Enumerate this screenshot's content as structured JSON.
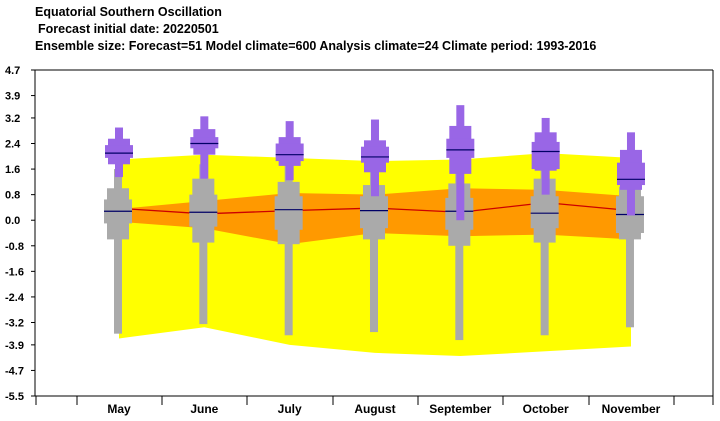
{
  "header": {
    "title": "Equatorial Southern Oscillation",
    "forecast_date": "Forecast initial date: 20220501",
    "ensemble_info": "Ensemble size: Forecast=51 Model climate=600 Analysis climate=24   Climate period: 1993-2016"
  },
  "colors": {
    "outer_band": "#ffff00",
    "inner_band": "#ff9900",
    "climate_box": "#aaaaaa",
    "forecast_box": "#9966e6",
    "median_line": "#cc0000",
    "box_median": "#000066"
  },
  "chart_data": {
    "type": "box",
    "title": "Equatorial Southern Oscillation",
    "categories": [
      "May",
      "June",
      "July",
      "August",
      "September",
      "October",
      "November"
    ],
    "y_ticks": [
      4.7,
      3.9,
      3.2,
      2.4,
      1.6,
      0.8,
      0.0,
      -0.8,
      -1.6,
      -2.4,
      -3.2,
      -3.9,
      -4.7,
      -5.5
    ],
    "ylim": [
      -5.5,
      4.7
    ],
    "grid": false,
    "analysis_climate_bands": {
      "outer_upper": [
        1.9,
        2.05,
        1.95,
        1.85,
        1.9,
        2.1,
        1.95
      ],
      "outer_lower": [
        -3.7,
        -3.35,
        -3.9,
        -4.15,
        -4.25,
        -4.1,
        -3.95
      ],
      "inner_upper": [
        0.35,
        0.6,
        0.85,
        0.8,
        1.0,
        0.95,
        0.75
      ],
      "inner_lower": [
        -0.05,
        -0.25,
        -0.75,
        -0.4,
        -0.5,
        -0.45,
        -0.6
      ],
      "median": [
        0.37,
        0.2,
        0.3,
        0.38,
        0.25,
        0.55,
        0.3
      ]
    },
    "model_climate": [
      {
        "min": -3.55,
        "p10": -0.6,
        "p25": -0.1,
        "median": 0.28,
        "p75": 0.65,
        "p90": 1.0,
        "max": 1.6
      },
      {
        "min": -3.25,
        "p10": -0.7,
        "p25": -0.2,
        "median": 0.25,
        "p75": 0.8,
        "p90": 1.3,
        "max": 1.75
      },
      {
        "min": -3.6,
        "p10": -0.75,
        "p25": -0.3,
        "median": 0.33,
        "p75": 0.75,
        "p90": 1.2,
        "max": 1.85
      },
      {
        "min": -3.5,
        "p10": -0.6,
        "p25": -0.25,
        "median": 0.3,
        "p75": 0.75,
        "p90": 1.1,
        "max": 1.55
      },
      {
        "min": -3.75,
        "p10": -0.8,
        "p25": -0.3,
        "median": 0.28,
        "p75": 0.7,
        "p90": 1.15,
        "max": 1.6
      },
      {
        "min": -3.6,
        "p10": -0.7,
        "p25": -0.25,
        "median": 0.22,
        "p75": 0.75,
        "p90": 1.3,
        "max": 1.75
      },
      {
        "min": -3.35,
        "p10": -0.6,
        "p25": -0.4,
        "median": 0.18,
        "p75": 0.75,
        "p90": 1.05,
        "max": 1.5
      }
    ],
    "forecast": [
      {
        "min": 1.35,
        "p10": 1.75,
        "p25": 1.95,
        "median": 2.1,
        "p75": 2.35,
        "p90": 2.55,
        "max": 2.9
      },
      {
        "min": 1.3,
        "p10": 2.05,
        "p25": 2.25,
        "median": 2.4,
        "p75": 2.6,
        "p90": 2.85,
        "max": 3.25
      },
      {
        "min": 1.25,
        "p10": 1.7,
        "p25": 1.85,
        "median": 2.05,
        "p75": 2.4,
        "p90": 2.6,
        "max": 3.1
      },
      {
        "min": 0.75,
        "p10": 1.5,
        "p25": 1.8,
        "median": 1.98,
        "p75": 2.3,
        "p90": 2.5,
        "max": 3.15
      },
      {
        "min": 0.0,
        "p10": 1.45,
        "p25": 1.95,
        "median": 2.2,
        "p75": 2.55,
        "p90": 2.95,
        "max": 3.6
      },
      {
        "min": 0.8,
        "p10": 1.55,
        "p25": 1.6,
        "median": 2.15,
        "p75": 2.45,
        "p90": 2.75,
        "max": 3.2
      },
      {
        "min": 0.15,
        "p10": 0.95,
        "p25": 1.1,
        "median": 1.28,
        "p75": 1.8,
        "p90": 2.2,
        "max": 2.75
      }
    ]
  }
}
